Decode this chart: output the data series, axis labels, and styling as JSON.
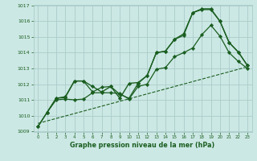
{
  "background_color": "#cce8e4",
  "grid_color": "#aaccca",
  "line_color": "#1a5e20",
  "xlabel": "Graphe pression niveau de la mer (hPa)",
  "ylim_min": 1009,
  "ylim_max": 1017,
  "xlim_min": -0.5,
  "xlim_max": 23.5,
  "yticks": [
    1009,
    1010,
    1011,
    1012,
    1013,
    1014,
    1015,
    1016,
    1017
  ],
  "xticks": [
    0,
    1,
    2,
    3,
    4,
    5,
    6,
    7,
    8,
    9,
    10,
    11,
    12,
    13,
    14,
    15,
    16,
    17,
    18,
    19,
    20,
    21,
    22,
    23
  ],
  "line1_x": [
    0,
    1,
    2,
    3,
    4,
    5,
    6,
    7,
    8,
    9,
    10,
    11,
    12,
    13,
    14,
    15,
    16,
    17,
    18,
    19,
    20,
    21,
    22,
    23
  ],
  "line1_y": [
    1009.3,
    1010.2,
    1011.1,
    1011.15,
    1012.2,
    1012.2,
    1011.85,
    1011.5,
    1011.85,
    1011.1,
    1012.05,
    1012.1,
    1012.55,
    1014.0,
    1014.1,
    1014.85,
    1015.2,
    1016.55,
    1016.75,
    1016.75,
    1016.0,
    1014.65,
    1014.05,
    1013.2
  ],
  "line2_x": [
    0,
    1,
    2,
    3,
    4,
    5,
    6,
    7,
    8,
    9,
    10,
    11,
    12,
    13,
    14,
    15,
    16,
    17,
    18,
    19,
    20,
    21,
    22,
    23
  ],
  "line2_y": [
    1009.3,
    1010.2,
    1011.1,
    1011.2,
    1012.2,
    1012.2,
    1011.5,
    1011.8,
    1011.85,
    1011.35,
    1011.1,
    1012.05,
    1012.55,
    1014.0,
    1014.1,
    1014.85,
    1015.1,
    1016.55,
    1016.8,
    1016.8,
    1016.0,
    1014.65,
    1014.05,
    1013.2
  ],
  "line3_x": [
    1,
    2,
    3,
    4,
    5,
    6,
    7,
    8,
    9,
    10,
    11,
    12,
    13,
    14,
    15,
    16,
    17,
    18,
    19,
    20,
    21,
    22,
    23
  ],
  "line3_y": [
    1010.2,
    1011.0,
    1011.05,
    1011.0,
    1011.05,
    1011.45,
    1011.45,
    1011.45,
    1011.4,
    1011.05,
    1011.85,
    1012.0,
    1012.95,
    1013.05,
    1013.75,
    1014.0,
    1014.3,
    1015.15,
    1015.75,
    1015.05,
    1014.0,
    1013.45,
    1013.0
  ],
  "trend_x": [
    0,
    23
  ],
  "trend_y": [
    1009.5,
    1013.1
  ]
}
